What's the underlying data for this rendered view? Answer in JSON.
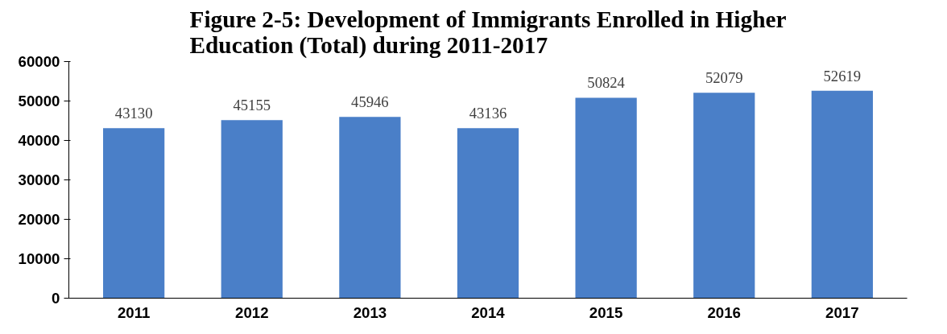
{
  "chart_data": {
    "type": "bar",
    "title": "Figure 2-5: Development of Immigrants Enrolled in Higher\nEducation (Total) during 2011-2017",
    "categories": [
      "2011",
      "2012",
      "2013",
      "2014",
      "2015",
      "2016",
      "2017"
    ],
    "values": [
      43130,
      45155,
      45946,
      43136,
      50824,
      52079,
      52619
    ],
    "color": "#4a7fc8",
    "ylim": [
      0,
      60000
    ],
    "yticks": [
      0,
      10000,
      20000,
      30000,
      40000,
      50000,
      60000
    ],
    "grid": false,
    "data_labels": true
  }
}
